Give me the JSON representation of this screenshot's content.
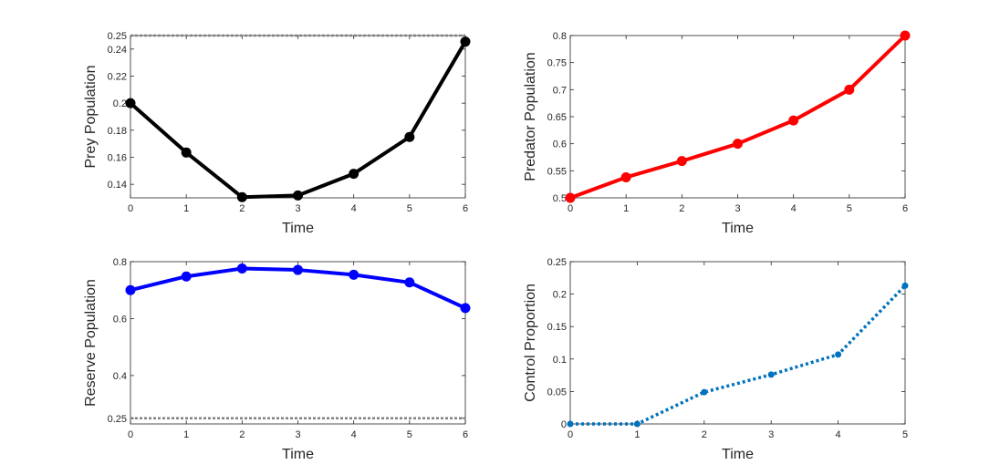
{
  "chart_data": [
    {
      "id": "prey",
      "type": "line",
      "xlabel": "Time",
      "ylabel": "Prey Population",
      "xlim": [
        0,
        6
      ],
      "ylim": [
        0.13,
        0.25
      ],
      "xticks": [
        "0",
        "1",
        "2",
        "3",
        "4",
        "5",
        "6"
      ],
      "yticks": [
        "0.14",
        "0.16",
        "0.18",
        "0.2",
        "0.22",
        "0.24",
        "0.25"
      ],
      "x": [
        0,
        1,
        2,
        3,
        4,
        5,
        6
      ],
      "y": [
        0.2,
        0.1635,
        0.1305,
        0.1318,
        0.1478,
        0.175,
        0.2455
      ],
      "color": "#000000",
      "style": "solid",
      "threshold": 0.25,
      "threshold_color": "#808080"
    },
    {
      "id": "predator",
      "type": "line",
      "xlabel": "Time",
      "ylabel": "Predator Population",
      "xlim": [
        0,
        6
      ],
      "ylim": [
        0.5,
        0.8
      ],
      "xticks": [
        "0",
        "1",
        "2",
        "3",
        "4",
        "5",
        "6"
      ],
      "yticks": [
        "0.5",
        "0.55",
        "0.6",
        "0.65",
        "0.7",
        "0.75",
        "0.8"
      ],
      "x": [
        0,
        1,
        2,
        3,
        4,
        5,
        6
      ],
      "y": [
        0.5,
        0.538,
        0.568,
        0.6,
        0.643,
        0.7,
        0.8
      ],
      "color": "#ff0000",
      "style": "solid"
    },
    {
      "id": "reserve",
      "type": "line",
      "xlabel": "Time",
      "ylabel": "Reserve Population",
      "xlim": [
        0,
        6
      ],
      "ylim": [
        0.23,
        0.8
      ],
      "xticks": [
        "0",
        "1",
        "2",
        "3",
        "4",
        "5",
        "6"
      ],
      "yticks": [
        "0.25",
        "0.4",
        "0.6",
        "0.8"
      ],
      "x": [
        0,
        1,
        2,
        3,
        4,
        5,
        6
      ],
      "y": [
        0.7,
        0.748,
        0.776,
        0.771,
        0.754,
        0.727,
        0.637
      ],
      "color": "#0000ff",
      "style": "solid",
      "threshold": 0.25,
      "threshold_color": "#808080"
    },
    {
      "id": "control",
      "type": "line",
      "xlabel": "Time",
      "ylabel": "Control Proportion",
      "xlim": [
        0,
        5
      ],
      "ylim": [
        0,
        0.25
      ],
      "xticks": [
        "0",
        "1",
        "2",
        "3",
        "4",
        "5"
      ],
      "yticks": [
        "0",
        "0.05",
        "0.1",
        "0.15",
        "0.2",
        "0.25"
      ],
      "x": [
        0,
        1,
        2,
        3,
        4,
        5
      ],
      "y": [
        0,
        0,
        0.049,
        0.076,
        0.107,
        0.213
      ],
      "color": "#0072bd",
      "style": "dotted"
    }
  ]
}
